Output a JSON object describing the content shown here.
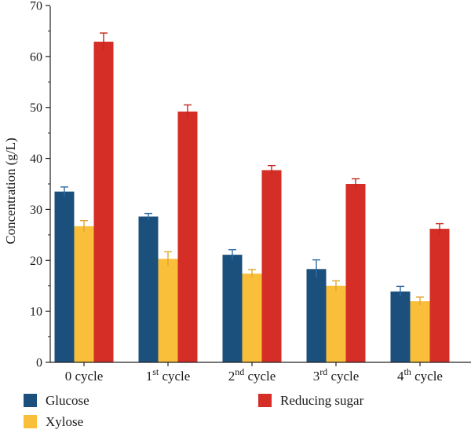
{
  "chart_data": {
    "type": "bar",
    "categories": [
      {
        "base": "0 cycle",
        "sup": "",
        "rest": ""
      },
      {
        "base": "1",
        "sup": "st",
        "rest": " cycle"
      },
      {
        "base": "2",
        "sup": "nd",
        "rest": " cycle"
      },
      {
        "base": "3",
        "sup": "rd",
        "rest": " cycle"
      },
      {
        "base": "4",
        "sup": "th",
        "rest": " cycle"
      }
    ],
    "series": [
      {
        "name": "Glucose",
        "color": "#1b4f7c",
        "error_color": "#2e6aa8",
        "values": [
          33.5,
          28.6,
          21.1,
          18.3,
          13.9
        ],
        "errors": [
          0.9,
          0.6,
          1.0,
          1.8,
          1.0
        ]
      },
      {
        "name": "Xylose",
        "color": "#f9bf3b",
        "error_color": "#e0a830",
        "values": [
          26.7,
          20.3,
          17.4,
          15.0,
          12.0
        ],
        "errors": [
          1.1,
          1.4,
          0.8,
          1.0,
          0.8
        ]
      },
      {
        "name": "Reducing sugar",
        "color": "#d42e26",
        "error_color": "#c0281f",
        "values": [
          62.9,
          49.2,
          37.7,
          35.0,
          26.2
        ],
        "errors": [
          1.7,
          1.3,
          0.9,
          1.0,
          1.0
        ]
      }
    ],
    "ylabel": "Concentration (g/L)",
    "ylim": [
      0,
      70
    ],
    "yticks": [
      "0",
      "10",
      "20",
      "30",
      "40",
      "50",
      "60",
      "70"
    ],
    "grid": false,
    "legend": "bottom"
  }
}
